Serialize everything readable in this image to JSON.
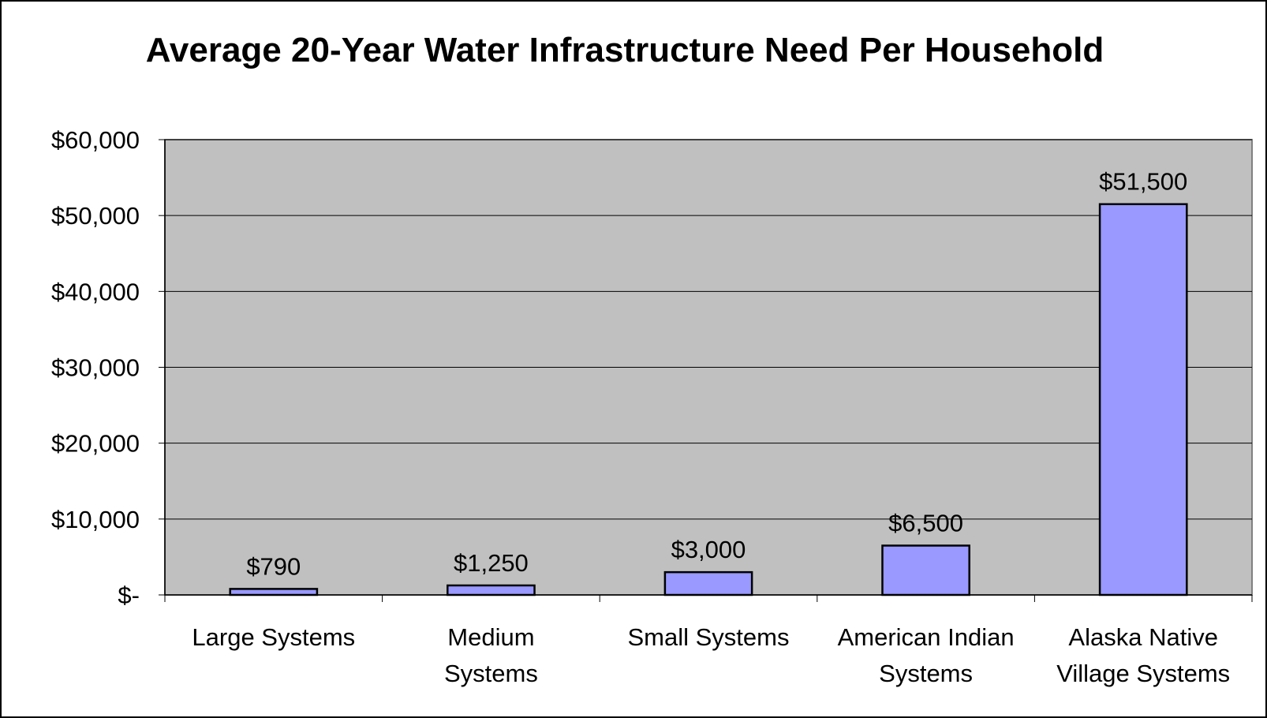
{
  "chart_data": {
    "type": "bar",
    "title": "Average 20-Year Water Infrastructure Need Per Household",
    "xlabel": "",
    "ylabel": "",
    "categories": [
      [
        "Large Systems"
      ],
      [
        "Medium",
        "Systems"
      ],
      [
        "Small Systems"
      ],
      [
        "American Indian",
        "Systems"
      ],
      [
        "Alaska Native",
        "Village Systems"
      ]
    ],
    "values": [
      790,
      1250,
      3000,
      6500,
      51500
    ],
    "data_labels": [
      "$790",
      "$1,250",
      "$3,000",
      "$6,500",
      "$51,500"
    ],
    "ylim": [
      0,
      60000
    ],
    "yticks": [
      0,
      10000,
      20000,
      30000,
      40000,
      50000,
      60000
    ],
    "ytick_labels": [
      "$-",
      "$10,000",
      "$20,000",
      "$30,000",
      "$40,000",
      "$50,000",
      "$60,000"
    ],
    "grid": true,
    "legend": "none",
    "colors": {
      "bar_fill": "#9999ff",
      "bar_stroke": "#000000",
      "plot_bg": "#c0c0c0",
      "gridline": "#000000"
    }
  }
}
